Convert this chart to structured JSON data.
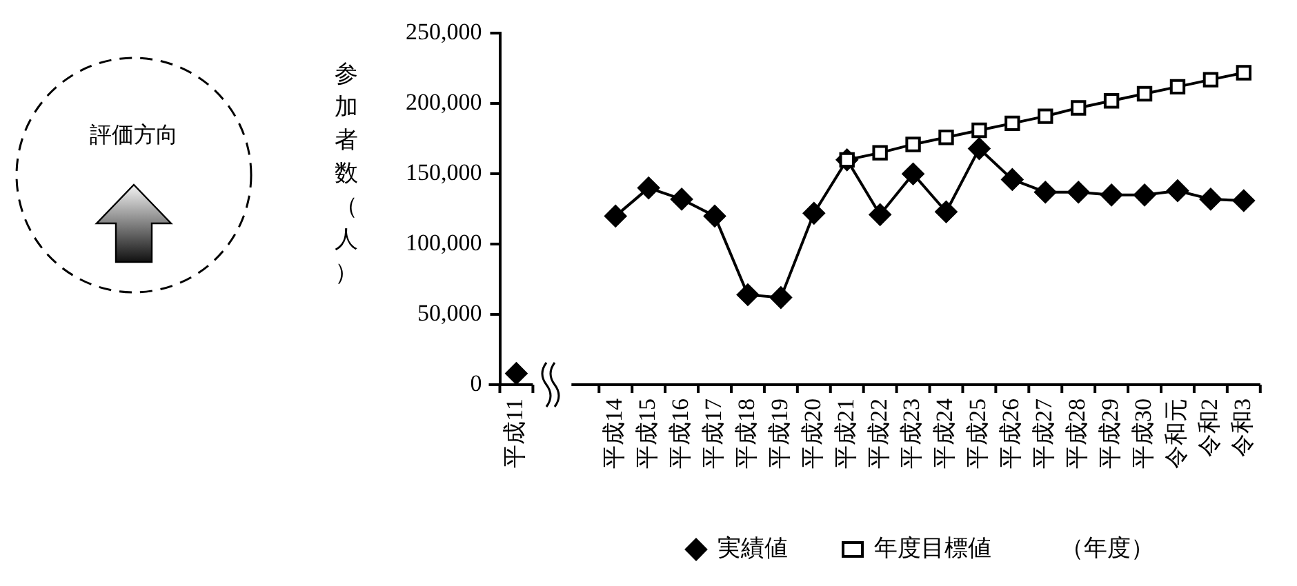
{
  "chart_data": {
    "type": "line",
    "categories": [
      "平成11",
      null,
      null,
      "平成14",
      "平成15",
      "平成16",
      "平成17",
      "平成18",
      "平成19",
      "平成20",
      "平成21",
      "平成22",
      "平成23",
      "平成24",
      "平成25",
      "平成26",
      "平成27",
      "平成28",
      "平成29",
      "平成30",
      "令和元",
      "令和2",
      "令和3"
    ],
    "series": [
      {
        "name": "実績値",
        "color": "#000000",
        "marker": "diamond",
        "values": [
          8000,
          null,
          null,
          120000,
          140000,
          132000,
          120000,
          64000,
          62000,
          122000,
          160000,
          121000,
          150000,
          123000,
          168000,
          146000,
          137000,
          137000,
          135000,
          135000,
          138000,
          132000,
          131000
        ]
      },
      {
        "name": "年度目標値",
        "color": "#000000",
        "marker": "square",
        "values": [
          null,
          null,
          null,
          null,
          null,
          null,
          null,
          null,
          null,
          null,
          160000,
          165000,
          171000,
          176000,
          181000,
          186000,
          191000,
          197000,
          202000,
          207000,
          212000,
          217000,
          222000
        ]
      }
    ],
    "ylabel": "参加者数（人）",
    "xlabel": "（年度）",
    "ylim": [
      0,
      250000
    ],
    "yticks": [
      0,
      {
        "value": 50000,
        "label": "50,000"
      },
      {
        "value": 100000,
        "label": "100,000"
      },
      {
        "value": 150000,
        "label": "150,000"
      },
      {
        "value": 200000,
        "label": "200,000"
      },
      {
        "value": 250000,
        "label": "250,000"
      }
    ],
    "grid": false,
    "legend": "bottom",
    "annotations": [
      "評価方向"
    ]
  }
}
